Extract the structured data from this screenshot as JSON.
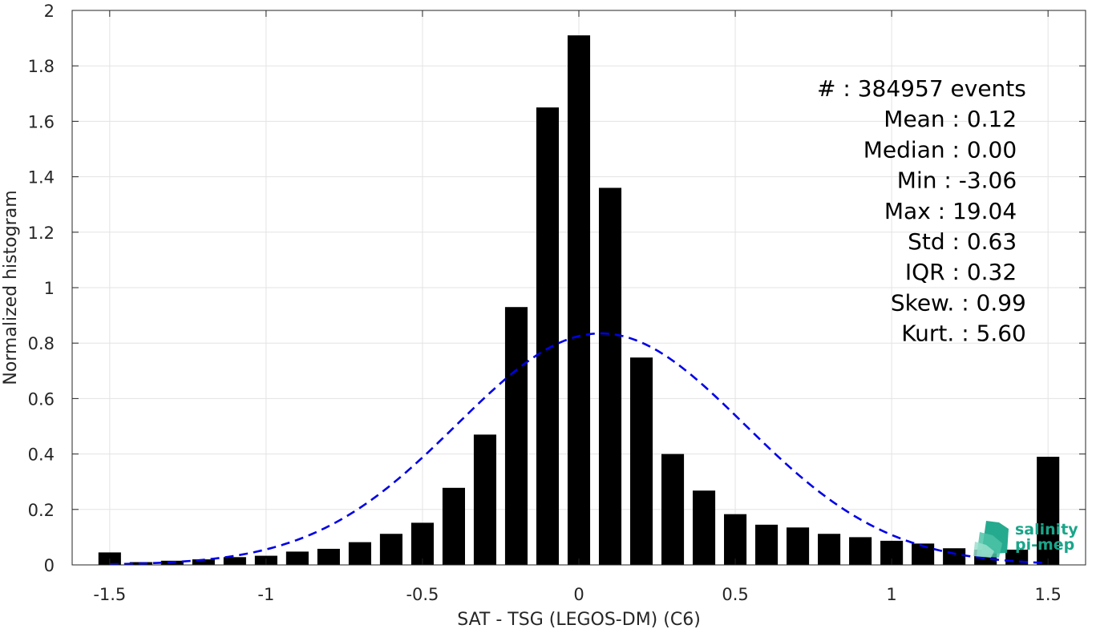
{
  "chart_data": {
    "type": "bar",
    "xlabel": "SAT - TSG (LEGOS-DM) (C6)",
    "ylabel": "Normalized histogram",
    "xlim": [
      -1.62,
      1.62
    ],
    "ylim": [
      0,
      2
    ],
    "x_ticks": [
      -1.5,
      -1,
      -0.5,
      0,
      0.5,
      1,
      1.5
    ],
    "x_tick_labels": [
      "-1.5",
      "-1",
      "-0.5",
      "0",
      "0.5",
      "1",
      "1.5"
    ],
    "y_ticks": [
      0,
      0.2,
      0.4,
      0.6,
      0.8,
      1,
      1.2,
      1.4,
      1.6,
      1.8,
      2
    ],
    "y_tick_labels": [
      "0",
      "0.2",
      "0.4",
      "0.6",
      "0.8",
      "1",
      "1.2",
      "1.4",
      "1.6",
      "1.8",
      "2"
    ],
    "grid": true,
    "bin_width": 0.1,
    "bar_color": "#000000",
    "bins": {
      "x": [
        -1.5,
        -1.4,
        -1.3,
        -1.2,
        -1.1,
        -1.0,
        -0.9,
        -0.8,
        -0.7,
        -0.6,
        -0.5,
        -0.4,
        -0.3,
        -0.2,
        -0.1,
        0.0,
        0.1,
        0.2,
        0.3,
        0.4,
        0.5,
        0.6,
        0.7,
        0.8,
        0.9,
        1.0,
        1.1,
        1.2,
        1.3,
        1.4,
        1.5
      ],
      "values": [
        0.045,
        0.01,
        0.015,
        0.02,
        0.028,
        0.033,
        0.048,
        0.058,
        0.082,
        0.112,
        0.152,
        0.278,
        0.47,
        0.93,
        1.65,
        1.91,
        1.36,
        0.748,
        0.4,
        0.268,
        0.183,
        0.145,
        0.135,
        0.112,
        0.1,
        0.087,
        0.077,
        0.06,
        0.055,
        0.055,
        0.39
      ]
    },
    "fit_curve": {
      "type": "gaussian",
      "mean": 0.07,
      "peak": 0.835,
      "sigma": 0.46,
      "x_range": [
        -1.5,
        1.5
      ],
      "color": "#0000e6",
      "style": "dashed"
    },
    "stats": [
      {
        "label": "#  : 384957 events",
        "align_x": 1.43
      },
      {
        "label": "Mean : 0.12",
        "align_x": 1.4
      },
      {
        "label": "Median : 0.00",
        "align_x": 1.4
      },
      {
        "label": "Min : -3.06",
        "align_x": 1.4
      },
      {
        "label": "Max : 19.04",
        "align_x": 1.4
      },
      {
        "label": "Std : 0.63",
        "align_x": 1.4
      },
      {
        "label": "IQR : 0.32",
        "align_x": 1.4
      },
      {
        "label": "Skew. : 0.99",
        "align_x": 1.43
      },
      {
        "label": "Kurt. : 5.60",
        "align_x": 1.43
      }
    ]
  },
  "logo": {
    "line1": "salinity",
    "line2": "pi-mep",
    "color": "#1aa589"
  }
}
